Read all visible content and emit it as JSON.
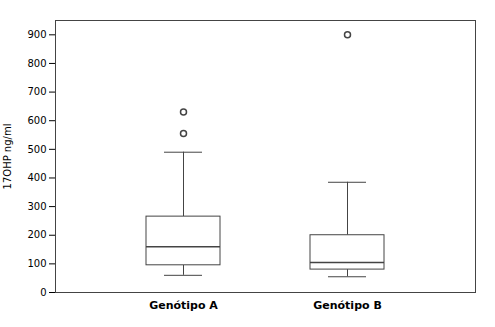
{
  "chart_data": {
    "type": "box",
    "categories": [
      "Genótipo A",
      "Genótipo B"
    ],
    "boxes": [
      {
        "q1": 95,
        "median": 160,
        "q3": 265,
        "whisker_low": 60,
        "whisker_high": 490,
        "outliers": [
          555,
          630
        ]
      },
      {
        "q1": 80,
        "median": 105,
        "q3": 200,
        "whisker_low": 55,
        "whisker_high": 385,
        "outliers": [
          900
        ]
      }
    ],
    "ylabel": "17OHP ng/ml",
    "ylim": [
      0,
      950
    ],
    "yticks": [
      0,
      100,
      200,
      300,
      400,
      500,
      600,
      700,
      800,
      900
    ],
    "grid": false,
    "color": "#444444"
  }
}
